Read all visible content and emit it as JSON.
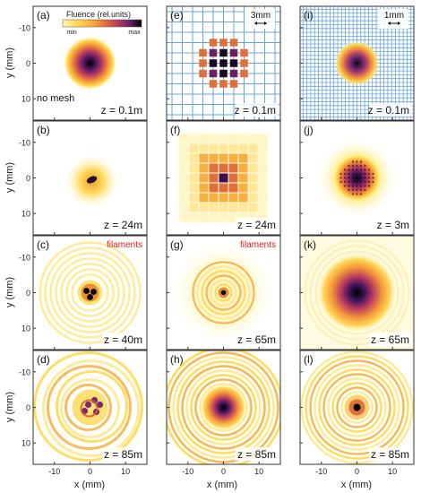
{
  "colorbar": {
    "title": "Fluence (rel.units)",
    "min_label": "min",
    "max_label": "max",
    "stops": [
      "#fff7b0",
      "#ffd84a",
      "#f7a53a",
      "#e46a3a",
      "#b83a5e",
      "#6b1f6b",
      "#000000"
    ]
  },
  "axes": {
    "ylabel": "y (mm)",
    "xlabel": "x (mm)",
    "yticks": [
      "10",
      "0",
      "-10"
    ],
    "xticks": [
      "-10",
      "0",
      "10"
    ]
  },
  "colors": {
    "mesh_blue": "#6aa4d8",
    "annotation_red": "#d42020",
    "frame": "#333333"
  },
  "panels": [
    {
      "label": "(a)",
      "z": "z = 0.1m",
      "pattern": "gauss-small",
      "note": "no mesh"
    },
    {
      "label": "(e)",
      "z": "z = 0.1m",
      "pattern": "mesh-coarse",
      "scale": "3mm"
    },
    {
      "label": "(i)",
      "z": "z = 0.1m",
      "pattern": "mesh-fine",
      "scale": "1mm"
    },
    {
      "label": "(b)",
      "z": "z = 24m",
      "pattern": "soft-spot"
    },
    {
      "label": "(f)",
      "z": "z = 24m",
      "pattern": "diffract-coarse"
    },
    {
      "label": "(j)",
      "z": "z = 3m",
      "pattern": "dotted-bright"
    },
    {
      "label": "(c)",
      "z": "z = 40m",
      "pattern": "rings-filaments",
      "annotation": "filaments"
    },
    {
      "label": "(g)",
      "z": "z = 65m",
      "pattern": "rings-center-dot",
      "annotation": "filaments"
    },
    {
      "label": "(k)",
      "z": "z = 65m",
      "pattern": "smooth-dark"
    },
    {
      "label": "(d)",
      "z": "z = 85m",
      "pattern": "turbulent"
    },
    {
      "label": "(h)",
      "z": "z = 85m",
      "pattern": "rings-big"
    },
    {
      "label": "(l)",
      "z": "z = 85m",
      "pattern": "rings-small"
    }
  ]
}
